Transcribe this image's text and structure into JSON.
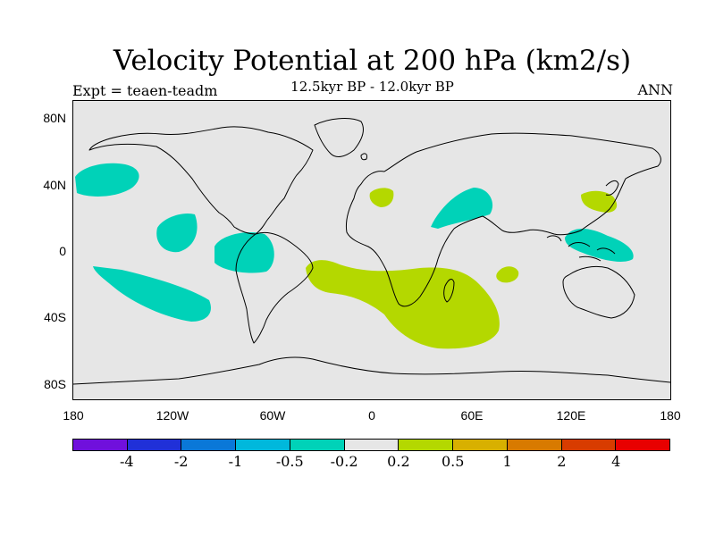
{
  "title": "Velocity Potential at 200 hPa (km2/s)",
  "subtitle": "12.5kyr BP - 12.0kyr BP",
  "experiment": "Expt = teaen-teadm",
  "season": "ANN",
  "lat_labels": [
    "80N",
    "40N",
    "0",
    "40S",
    "80S"
  ],
  "lon_labels": [
    "180",
    "120W",
    "60W",
    "0",
    "60E",
    "120E",
    "180"
  ],
  "colorbar": {
    "labels": [
      "-4",
      "-2",
      "-1",
      "-0.5",
      "-0.2",
      "0.2",
      "0.5",
      "1",
      "2",
      "4"
    ],
    "colors": [
      "#7010dc",
      "#2030d8",
      "#0a78d8",
      "#00b8dc",
      "#00d2b8",
      "#e6e6e6",
      "#b4d800",
      "#d8b000",
      "#d87a00",
      "#d83c00",
      "#e80000"
    ]
  },
  "colors": {
    "positive_fill": "#b4d800",
    "negative_fill": "#00d2b8",
    "land_background": "#e6e6e6"
  }
}
